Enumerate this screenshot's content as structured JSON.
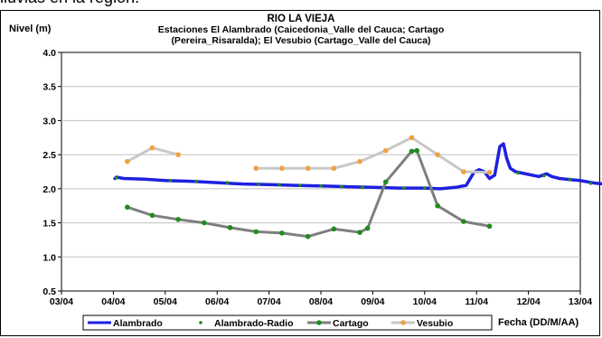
{
  "top_text": "lluvias en la region.",
  "chart_data": {
    "type": "line",
    "title_lines": [
      "RIO LA VIEJA",
      "Estaciones El Alambrado (Caicedonia_Valle del Cauca; Cartago",
      "(Pereira_Risaralda);  El Vesubio (Cartago_Valle del Cauca)"
    ],
    "ylabel": "Nivel (m)",
    "xlabel": "Fecha (DD/M/AA)",
    "x_ticks": [
      "03/04",
      "04/04",
      "05/04",
      "06/04",
      "07/04",
      "08/04",
      "09/04",
      "10/04",
      "11/04",
      "12/04",
      "13/04"
    ],
    "y_ticks": [
      "0.5",
      "1.0",
      "1.5",
      "2.0",
      "2.5",
      "3.0",
      "3.5",
      "4.0"
    ],
    "ylim": [
      0.5,
      4.0
    ],
    "x_unit": "months since 03/04 (tick index)",
    "grid": true,
    "legend_position": "bottom",
    "series": [
      {
        "name": "Alambrado",
        "color": "#1f1fe0",
        "style": "line",
        "points": [
          [
            1.03,
            2.15
          ],
          [
            1.06,
            2.17
          ],
          [
            1.2,
            2.15
          ],
          [
            1.6,
            2.14
          ],
          [
            2.0,
            2.12
          ],
          [
            2.5,
            2.11
          ],
          [
            3.0,
            2.09
          ],
          [
            3.5,
            2.07
          ],
          [
            4.0,
            2.06
          ],
          [
            4.5,
            2.05
          ],
          [
            5.0,
            2.04
          ],
          [
            5.5,
            2.03
          ],
          [
            6.0,
            2.02
          ],
          [
            6.5,
            2.01
          ],
          [
            7.0,
            2.01
          ],
          [
            7.3,
            2.0
          ],
          [
            7.6,
            2.02
          ],
          [
            7.8,
            2.05
          ],
          [
            7.95,
            2.24
          ],
          [
            8.05,
            2.28
          ],
          [
            8.15,
            2.25
          ],
          [
            8.25,
            2.15
          ],
          [
            8.35,
            2.2
          ],
          [
            8.45,
            2.62
          ],
          [
            8.52,
            2.66
          ],
          [
            8.58,
            2.45
          ],
          [
            8.65,
            2.3
          ],
          [
            8.75,
            2.25
          ],
          [
            9.0,
            2.21
          ],
          [
            9.2,
            2.18
          ],
          [
            9.35,
            2.22
          ],
          [
            9.45,
            2.18
          ],
          [
            9.6,
            2.15
          ],
          [
            10.0,
            2.12
          ],
          [
            10.3,
            2.08
          ],
          [
            10.6,
            2.06
          ],
          [
            10.8,
            2.07
          ],
          [
            10.9,
            2.14
          ],
          [
            11.0,
            2.12
          ],
          [
            11.2,
            2.1
          ],
          [
            11.35,
            2.2
          ],
          [
            11.45,
            2.22
          ],
          [
            11.5,
            2.18
          ],
          [
            11.6,
            2.12
          ]
        ]
      },
      {
        "name": "Alambrado-Radio",
        "color": "#1e8c1e",
        "style": "markers",
        "points": [
          [
            1.06,
            2.16
          ],
          [
            2.1,
            2.12
          ],
          [
            2.6,
            2.11
          ],
          [
            3.2,
            2.09
          ],
          [
            3.8,
            2.07
          ],
          [
            4.2,
            2.06
          ],
          [
            4.6,
            2.05
          ],
          [
            5.0,
            2.04
          ],
          [
            5.4,
            2.03
          ],
          [
            5.8,
            2.02
          ],
          [
            6.2,
            2.01
          ],
          [
            6.6,
            2.01
          ],
          [
            7.0,
            2.01
          ],
          [
            8.8,
            2.23
          ],
          [
            9.3,
            2.19
          ],
          [
            9.8,
            2.14
          ],
          [
            10.2,
            2.08
          ],
          [
            10.6,
            2.06
          ],
          [
            11.1,
            2.11
          ]
        ]
      },
      {
        "name": "Cartago",
        "color": "#7f7f7f",
        "marker_color": "#1e8c1e",
        "style": "line-markers",
        "points": [
          [
            1.27,
            1.73
          ],
          [
            1.75,
            1.61
          ],
          [
            2.25,
            1.55
          ],
          [
            2.75,
            1.5
          ],
          [
            3.25,
            1.43
          ],
          [
            3.75,
            1.37
          ],
          [
            4.25,
            1.35
          ],
          [
            4.75,
            1.3
          ],
          [
            5.25,
            1.41
          ],
          [
            5.75,
            1.36
          ],
          [
            5.9,
            1.42
          ],
          [
            6.25,
            2.1
          ],
          [
            6.75,
            2.55
          ],
          [
            6.85,
            2.56
          ],
          [
            7.25,
            1.75
          ],
          [
            7.75,
            1.52
          ],
          [
            8.25,
            1.45
          ]
        ]
      },
      {
        "name": "Vesubio",
        "color": "#c8c8c8",
        "marker_color": "#f0a040",
        "style": "line-markers",
        "segments": [
          [
            [
              1.27,
              2.4
            ],
            [
              1.75,
              2.6
            ],
            [
              2.25,
              2.5
            ]
          ],
          [
            [
              3.75,
              2.3
            ],
            [
              4.25,
              2.3
            ],
            [
              4.75,
              2.3
            ],
            [
              5.25,
              2.3
            ],
            [
              5.75,
              2.4
            ],
            [
              6.25,
              2.56
            ],
            [
              6.75,
              2.75
            ],
            [
              7.25,
              2.5
            ],
            [
              7.75,
              2.25
            ],
            [
              8.25,
              2.24
            ]
          ]
        ]
      }
    ]
  }
}
